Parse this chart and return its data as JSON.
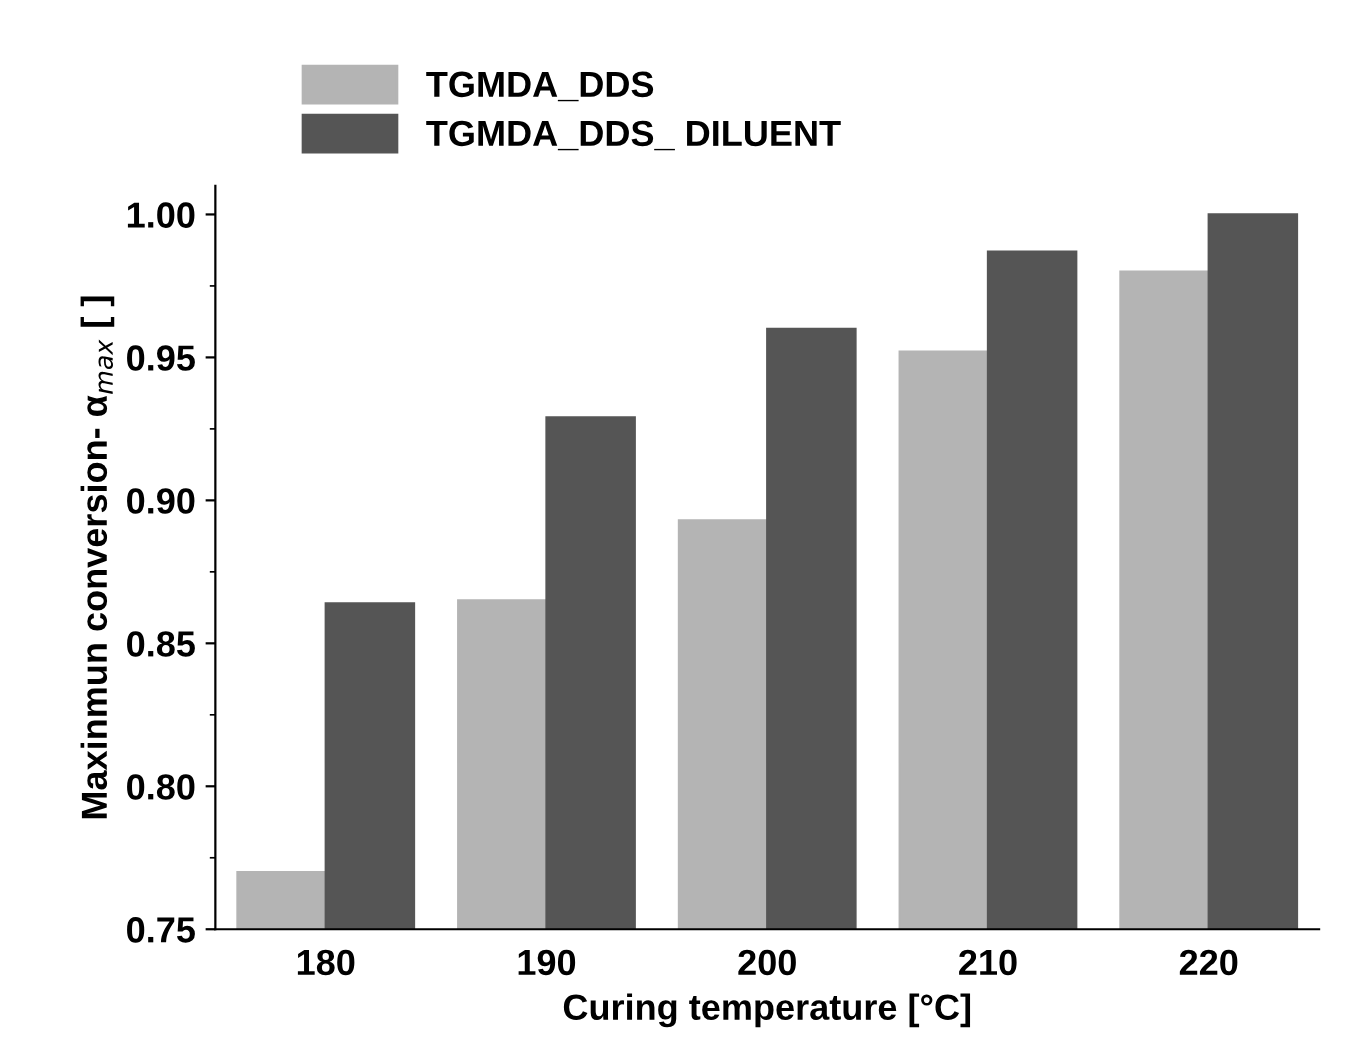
{
  "chart_data": {
    "type": "bar",
    "xlabel": "Curing temperature [°C]",
    "ylabel": "Maxinmun conversion- α$_{max}$ [ ]",
    "categories": [
      "180",
      "190",
      "200",
      "210",
      "220"
    ],
    "series": [
      {
        "name": "TGMDA_DDS",
        "color": "#b4b4b4",
        "values": [
          0.77,
          0.865,
          0.893,
          0.952,
          0.98
        ]
      },
      {
        "name": "TGMDA_DDS_ DILUENT",
        "color": "#555555",
        "values": [
          0.864,
          0.929,
          0.96,
          0.987,
          1.0
        ]
      }
    ],
    "ylim": [
      0.75,
      1.01
    ],
    "yticks": [
      0.75,
      {
        "value": 0.8,
        "label": "0.80"
      },
      0.85,
      {
        "value": 0.9,
        "label": "0.90"
      },
      0.95,
      {
        "value": 1,
        "label": "1.00"
      }
    ],
    "grid": false,
    "legend": "top left"
  }
}
